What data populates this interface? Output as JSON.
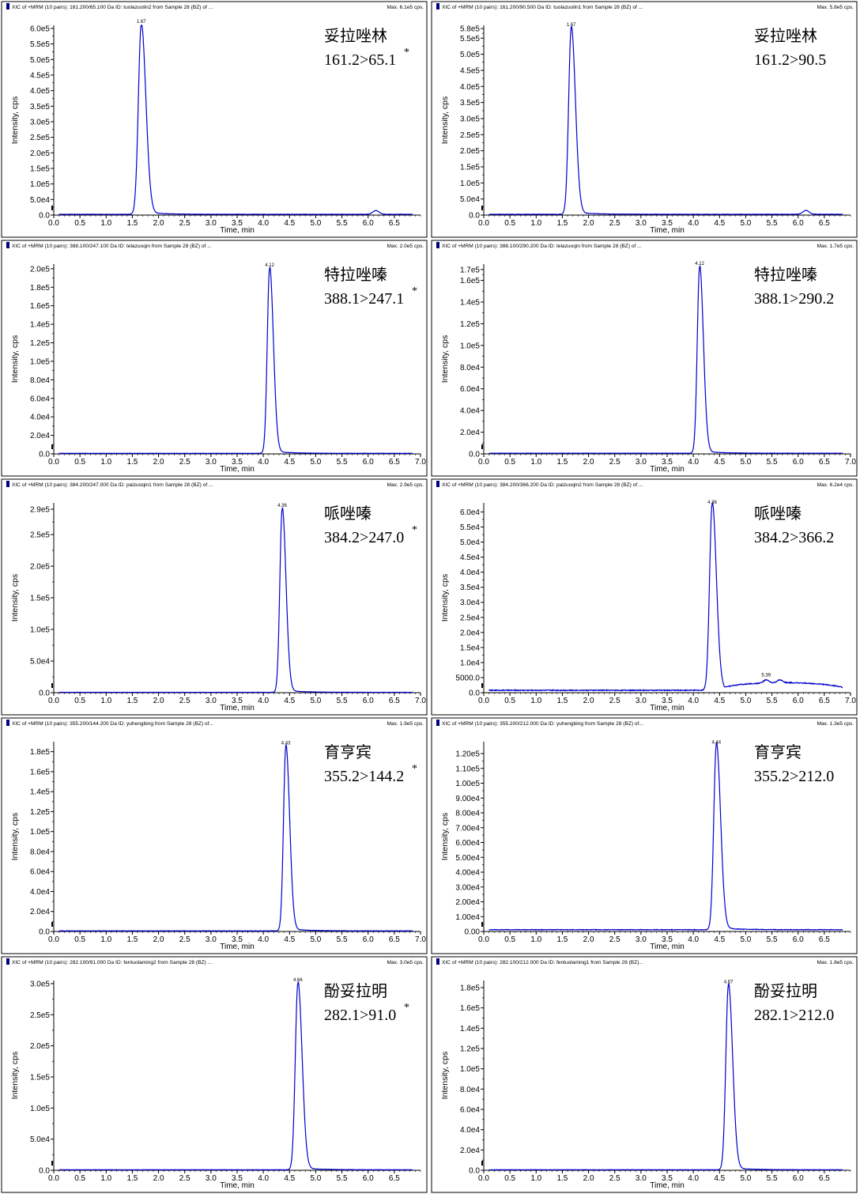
{
  "chart_data": [
    {
      "type": "line",
      "header": "XIC of +MRM (10 pairs): 161.200/65.100 Da ID: tuolazuolin2 from Sample 28 (BZ) of ...",
      "max_label": "Max. 6.1e5 cps.",
      "ylabel": "Intensity, cps",
      "xlabel": "Time, min",
      "y_ticks": [
        "0.0",
        "5.0e4",
        "1.0e5",
        "1.5e5",
        "2.0e5",
        "2.5e5",
        "3.0e5",
        "3.5e5",
        "4.0e5",
        "4.5e5",
        "5.0e5",
        "5.5e5",
        "6.0e5"
      ],
      "y_tick_values": [
        0,
        50000,
        100000,
        150000,
        200000,
        250000,
        300000,
        350000,
        400000,
        450000,
        500000,
        550000,
        600000
      ],
      "ylim": [
        0,
        610000
      ],
      "x_ticks": [
        "0.0",
        "0.5",
        "1.0",
        "1.5",
        "2.0",
        "2.5",
        "3.0",
        "3.5",
        "4.0",
        "4.5",
        "5.0",
        "5.5",
        "6.0",
        "6.5"
      ],
      "x_tick_values": [
        0,
        0.5,
        1,
        1.5,
        2,
        2.5,
        3,
        3.5,
        4,
        4.5,
        5,
        5.5,
        6,
        6.5
      ],
      "xlim": [
        0,
        7.0
      ],
      "peak_rt": 1.67,
      "peak_label": "1.67",
      "peak_height": 610000,
      "peak_width": 0.055,
      "baseline": 2500,
      "minor_peaks": [
        {
          "rt": 6.15,
          "height": 12000,
          "width": 0.06
        }
      ],
      "compound": "妥拉唑林",
      "transition": "161.2>65.1",
      "asterisk": "*"
    },
    {
      "type": "line",
      "header": "XIC of +MRM (10 pairs): 161.200/90.500 Da ID: tuolazuolin1 from Sample 28 (BZ) of ...",
      "max_label": "Max. 5.8e5 cps.",
      "ylabel": "Intensity, cps",
      "xlabel": "Time, min",
      "y_ticks": [
        "0.0",
        "5.0e4",
        "1.0e5",
        "1.5e5",
        "2.0e5",
        "2.5e5",
        "3.0e5",
        "3.5e5",
        "4.0e5",
        "4.5e5",
        "5.0e5",
        "5.5e5",
        "5.8e5"
      ],
      "y_tick_values": [
        0,
        50000,
        100000,
        150000,
        200000,
        250000,
        300000,
        350000,
        400000,
        450000,
        500000,
        550000,
        580000
      ],
      "ylim": [
        0,
        590000
      ],
      "x_ticks": [
        "0.0",
        "0.5",
        "1.0",
        "1.5",
        "2.0",
        "2.5",
        "3.0",
        "3.5",
        "4.0",
        "4.5",
        "5.0",
        "5.5",
        "6.0",
        "6.5"
      ],
      "x_tick_values": [
        0,
        0.5,
        1,
        1.5,
        2,
        2.5,
        3,
        3.5,
        4,
        4.5,
        5,
        5.5,
        6,
        6.5
      ],
      "xlim": [
        0,
        7.0
      ],
      "peak_rt": 1.67,
      "peak_label": "1.67",
      "peak_height": 580000,
      "peak_width": 0.05,
      "baseline": 2500,
      "minor_peaks": [
        {
          "rt": 6.15,
          "height": 12000,
          "width": 0.06
        }
      ],
      "compound": "妥拉唑林",
      "transition": "161.2>90.5",
      "asterisk": ""
    },
    {
      "type": "line",
      "header": "XIC of +MRM (10 pairs): 388.100/247.100 Da ID: telazuoqin from Sample 28 (BZ) of ...",
      "max_label": "Max. 2.0e5 cps.",
      "ylabel": "Intensity, cps",
      "xlabel": "Time, min",
      "y_ticks": [
        "0.0",
        "2.0e4",
        "4.0e4",
        "6.0e4",
        "8.0e4",
        "1.0e5",
        "1.2e5",
        "1.4e5",
        "1.6e5",
        "1.8e5",
        "2.0e5"
      ],
      "y_tick_values": [
        0,
        20000,
        40000,
        60000,
        80000,
        100000,
        120000,
        140000,
        160000,
        180000,
        200000
      ],
      "ylim": [
        0,
        205000
      ],
      "x_ticks": [
        "0.0",
        "0.5",
        "1.0",
        "1.5",
        "2.0",
        "2.5",
        "3.0",
        "3.5",
        "4.0",
        "4.5",
        "5.0",
        "5.5",
        "6.0",
        "6.5",
        "7.0"
      ],
      "x_tick_values": [
        0,
        0.5,
        1,
        1.5,
        2,
        2.5,
        3,
        3.5,
        4,
        4.5,
        5,
        5.5,
        6,
        6.5,
        7
      ],
      "xlim": [
        0,
        7.0
      ],
      "peak_rt": 4.12,
      "peak_label": "4.12",
      "peak_height": 200000,
      "peak_width": 0.045,
      "baseline": 600,
      "minor_peaks": [],
      "compound": "特拉唑嗪",
      "transition": "388.1>247.1",
      "asterisk": "*"
    },
    {
      "type": "line",
      "header": "XIC of +MRM (10 pairs): 388.100/290.200 Da ID: telazuoqin from Sample 28 (BZ) of ...",
      "max_label": "Max. 1.7e5 cps.",
      "ylabel": "Intensity, cps",
      "xlabel": "Time, min",
      "y_ticks": [
        "0.0",
        "2.0e4",
        "4.0e4",
        "6.0e4",
        "8.0e4",
        "1.0e5",
        "1.2e5",
        "1.4e5",
        "1.6e5",
        "1.7e5"
      ],
      "y_tick_values": [
        0,
        20000,
        40000,
        60000,
        80000,
        100000,
        120000,
        140000,
        160000,
        170000
      ],
      "ylim": [
        0,
        175000
      ],
      "x_ticks": [
        "0.0",
        "0.5",
        "1.0",
        "1.5",
        "2.0",
        "2.5",
        "3.0",
        "3.5",
        "4.0",
        "4.5",
        "5.0",
        "5.5",
        "6.0",
        "6.5",
        "7.0"
      ],
      "x_tick_values": [
        0,
        0.5,
        1,
        1.5,
        2,
        2.5,
        3,
        3.5,
        4,
        4.5,
        5,
        5.5,
        6,
        6.5,
        7
      ],
      "xlim": [
        0,
        7.0
      ],
      "peak_rt": 4.12,
      "peak_label": "4.12",
      "peak_height": 172000,
      "peak_width": 0.045,
      "baseline": 600,
      "minor_peaks": [],
      "compound": "特拉唑嗪",
      "transition": "388.1>290.2",
      "asterisk": ""
    },
    {
      "type": "line",
      "header": "XIC of +MRM (10 pairs): 384.200/247.000 Da ID: paizuoqin1 from Sample 28 (BZ) of ...",
      "max_label": "Max. 2.9e5 cps.",
      "ylabel": "Intensity, cps",
      "xlabel": "Time, min",
      "y_ticks": [
        "0.0",
        "5.0e4",
        "1.0e5",
        "1.5e5",
        "2.0e5",
        "2.5e5",
        "2.9e5"
      ],
      "y_tick_values": [
        0,
        50000,
        100000,
        150000,
        200000,
        250000,
        290000
      ],
      "ylim": [
        0,
        300000
      ],
      "x_ticks": [
        "0.0",
        "0.5",
        "1.0",
        "1.5",
        "2.0",
        "2.5",
        "3.0",
        "3.5",
        "4.0",
        "4.5",
        "5.0",
        "5.5",
        "6.0",
        "6.5",
        "7.0"
      ],
      "x_tick_values": [
        0,
        0.5,
        1,
        1.5,
        2,
        2.5,
        3,
        3.5,
        4,
        4.5,
        5,
        5.5,
        6,
        6.5,
        7
      ],
      "xlim": [
        0,
        7.0
      ],
      "peak_rt": 4.36,
      "peak_label": "4.36",
      "peak_height": 290000,
      "peak_width": 0.045,
      "baseline": 600,
      "minor_peaks": [],
      "compound": "哌唑嗪",
      "transition": "384.2>247.0",
      "asterisk": "*"
    },
    {
      "type": "line",
      "header": "XIC of +MRM (10 pairs): 384.200/366.200 Da ID: paizuoqin2 from Sample 28 (BZ) of ...",
      "max_label": "Max. 6.2e4 cps.",
      "ylabel": "Intensity, cps",
      "xlabel": "Time, min",
      "y_ticks": [
        "0.0",
        "5000.0",
        "1.0e4",
        "1.5e4",
        "2.0e4",
        "2.5e4",
        "3.0e4",
        "3.5e4",
        "4.0e4",
        "4.5e4",
        "5.0e4",
        "5.5e4",
        "6.0e4"
      ],
      "y_tick_values": [
        0,
        5000,
        10000,
        15000,
        20000,
        25000,
        30000,
        35000,
        40000,
        45000,
        50000,
        55000,
        60000
      ],
      "ylim": [
        0,
        63000
      ],
      "x_ticks": [
        "0.0",
        "0.5",
        "1.0",
        "1.5",
        "2.0",
        "2.5",
        "3.0",
        "3.5",
        "4.0",
        "4.5",
        "5.0",
        "5.5",
        "6.0",
        "6.5",
        "7.0"
      ],
      "x_tick_values": [
        0,
        0.5,
        1,
        1.5,
        2,
        2.5,
        3,
        3.5,
        4,
        4.5,
        5,
        5.5,
        6,
        6.5,
        7
      ],
      "xlim": [
        0,
        7.0
      ],
      "peak_rt": 4.36,
      "peak_label": "4.36",
      "peak_height": 62000,
      "peak_width": 0.05,
      "baseline": 800,
      "noise": 300,
      "hump": {
        "start": 4.6,
        "end": 6.9,
        "level": 2500
      },
      "minor_peaks": [
        {
          "rt": 5.39,
          "height": 1000,
          "width": 0.05,
          "label": "5.39"
        },
        {
          "rt": 5.65,
          "height": 900,
          "width": 0.05
        }
      ],
      "compound": "哌唑嗪",
      "transition": "384.2>366.2",
      "asterisk": ""
    },
    {
      "type": "line",
      "header": "XIC of +MRM (10 pairs): 355.200/144.200 Da ID: yuhengbing from Sample 28 (BZ) of...",
      "max_label": "Max. 1.9e5 cps.",
      "ylabel": "Intensity, cps",
      "xlabel": "Time, min",
      "y_ticks": [
        "0.0",
        "2.0e4",
        "4.0e4",
        "6.0e4",
        "8.0e4",
        "1.0e5",
        "1.2e5",
        "1.4e5",
        "1.6e5",
        "1.8e5"
      ],
      "y_tick_values": [
        0,
        20000,
        40000,
        60000,
        80000,
        100000,
        120000,
        140000,
        160000,
        180000
      ],
      "ylim": [
        0,
        190000
      ],
      "x_ticks": [
        "0.0",
        "0.5",
        "1.0",
        "1.5",
        "2.0",
        "2.5",
        "3.0",
        "3.5",
        "4.0",
        "4.5",
        "5.0",
        "5.5",
        "6.0",
        "6.5",
        "7.0"
      ],
      "x_tick_values": [
        0,
        0.5,
        1,
        1.5,
        2,
        2.5,
        3,
        3.5,
        4,
        4.5,
        5,
        5.5,
        6,
        6.5,
        7
      ],
      "xlim": [
        0,
        7.0
      ],
      "peak_rt": 4.43,
      "peak_label": "4.43",
      "peak_height": 185000,
      "peak_width": 0.045,
      "baseline": 600,
      "minor_peaks": [],
      "compound": "育亨宾",
      "transition": "355.2>144.2",
      "asterisk": "*"
    },
    {
      "type": "line",
      "header": "XIC of +MRM (10 pairs): 355.200/212.000 Da ID: yuhengbing from Sample 28 (BZ) of...",
      "max_label": "Max. 1.3e5 cps.",
      "ylabel": "Intensity, cps",
      "xlabel": "Time, min",
      "y_ticks": [
        "0.00",
        "1.00e4",
        "2.00e4",
        "3.00e4",
        "4.00e4",
        "5.00e4",
        "6.00e4",
        "7.00e4",
        "8.00e4",
        "9.00e4",
        "1.00e5",
        "1.10e5",
        "1.20e5"
      ],
      "y_tick_values": [
        0,
        10000,
        20000,
        30000,
        40000,
        50000,
        60000,
        70000,
        80000,
        90000,
        100000,
        110000,
        120000
      ],
      "ylim": [
        0,
        128000
      ],
      "x_ticks": [
        "0.0",
        "0.5",
        "1.0",
        "1.5",
        "2.0",
        "2.5",
        "3.0",
        "3.5",
        "4.0",
        "4.5",
        "5.0",
        "5.5",
        "6.0",
        "6.5"
      ],
      "x_tick_values": [
        0,
        0.5,
        1,
        1.5,
        2,
        2.5,
        3,
        3.5,
        4,
        4.5,
        5,
        5.5,
        6,
        6.5
      ],
      "xlim": [
        0,
        7.0
      ],
      "peak_rt": 4.44,
      "peak_label": "4.44",
      "peak_height": 125000,
      "peak_width": 0.05,
      "baseline": 1200,
      "noise": 400,
      "minor_peaks": [],
      "compound": "育亨宾",
      "transition": "355.2>212.0",
      "asterisk": ""
    },
    {
      "type": "line",
      "header": "XIC of +MRM (10 pairs): 282.100/91.000 Da ID: fentuolaming2 from Sample 28 (BZ) ...",
      "max_label": "Max. 3.0e5 cps.",
      "ylabel": "Intensity, cps",
      "xlabel": "Time, min",
      "y_ticks": [
        "0.0",
        "5.0e4",
        "1.0e5",
        "1.5e5",
        "2.0e5",
        "2.5e5",
        "3.0e5"
      ],
      "y_tick_values": [
        0,
        50000,
        100000,
        150000,
        200000,
        250000,
        300000
      ],
      "ylim": [
        0,
        305000
      ],
      "x_ticks": [
        "0.0",
        "0.5",
        "1.0",
        "1.5",
        "2.0",
        "2.5",
        "3.0",
        "3.5",
        "4.0",
        "4.5",
        "5.0",
        "5.5",
        "6.0",
        "6.5"
      ],
      "x_tick_values": [
        0,
        0.5,
        1,
        1.5,
        2,
        2.5,
        3,
        3.5,
        4,
        4.5,
        5,
        5.5,
        6,
        6.5
      ],
      "xlim": [
        0,
        7.0
      ],
      "peak_rt": 4.66,
      "peak_label": "4.66",
      "peak_height": 300000,
      "peak_width": 0.05,
      "baseline": 800,
      "minor_peaks": [],
      "compound": "酚妥拉明",
      "transition": "282.1>91.0",
      "asterisk": "*"
    },
    {
      "type": "line",
      "header": "XIC of +MRM (10 pairs): 282.100/212.000 Da ID: fentuolaming1 from Sample 28 (BZ)...",
      "max_label": "Max. 1.8e5 cps.",
      "ylabel": "Intensity, cps",
      "xlabel": "Time, min",
      "y_ticks": [
        "0.0",
        "2.0e4",
        "4.0e4",
        "6.0e4",
        "8.0e4",
        "1.0e5",
        "1.2e5",
        "1.4e5",
        "1.6e5",
        "1.8e5"
      ],
      "y_tick_values": [
        0,
        20000,
        40000,
        60000,
        80000,
        100000,
        120000,
        140000,
        160000,
        180000
      ],
      "ylim": [
        0,
        187000
      ],
      "x_ticks": [
        "0.0",
        "0.5",
        "1.0",
        "1.5",
        "2.0",
        "2.5",
        "3.0",
        "3.5",
        "4.0",
        "4.5",
        "5.0",
        "5.5",
        "6.0",
        "6.5"
      ],
      "x_tick_values": [
        0,
        0.5,
        1,
        1.5,
        2,
        2.5,
        3,
        3.5,
        4,
        4.5,
        5,
        5.5,
        6,
        6.5
      ],
      "xlim": [
        0,
        7.0
      ],
      "peak_rt": 4.67,
      "peak_label": "4.67",
      "peak_height": 182000,
      "peak_width": 0.05,
      "baseline": 500,
      "minor_peaks": [],
      "compound": "酚妥拉明",
      "transition": "282.1>212.0",
      "asterisk": ""
    }
  ],
  "colors": {
    "trace": "#0000cc",
    "frame": "#000000",
    "text": "#000000",
    "marker": "#000080"
  }
}
